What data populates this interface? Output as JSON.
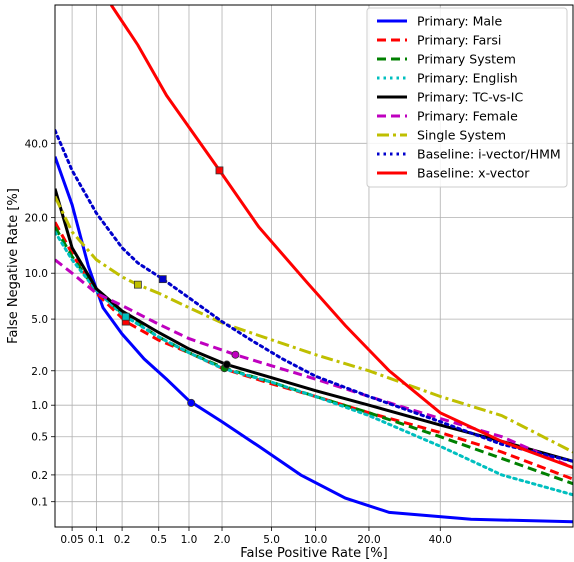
{
  "chart_data": {
    "type": "line",
    "title": "",
    "xlabel": "False Positive Rate [%]",
    "ylabel": "False Negative Rate [%]",
    "x_scale": "probit",
    "y_scale": "probit",
    "xlim": [
      0.03,
      80
    ],
    "ylim": [
      0.05,
      80
    ],
    "x_ticks": [
      0.05,
      0.1,
      0.2,
      0.5,
      1.0,
      2.0,
      5.0,
      10.0,
      20.0,
      40.0
    ],
    "x_tick_labels": [
      "0.05",
      "0.1",
      "0.2",
      "0.5",
      "1.0",
      "2.0",
      "5.0",
      "10.0",
      "20.0",
      "40.0"
    ],
    "y_ticks": [
      0.1,
      0.2,
      0.5,
      1.0,
      2.0,
      5.0,
      10.0,
      20.0,
      40.0
    ],
    "y_tick_labels": [
      "0.1",
      "0.2",
      "0.5",
      "1.0",
      "2.0",
      "5.0",
      "10.0",
      "20.0",
      "40.0"
    ],
    "grid": true,
    "legend_position": "top-right",
    "series": [
      {
        "name": "Primary: Male",
        "color": "#0000ff",
        "dash": "solid",
        "marker": "circle",
        "operating_point": [
          1.05,
          1.05
        ],
        "points": [
          [
            0.03,
            36
          ],
          [
            0.05,
            23
          ],
          [
            0.08,
            11
          ],
          [
            0.12,
            6
          ],
          [
            0.2,
            3.9
          ],
          [
            0.35,
            2.5
          ],
          [
            0.6,
            1.7
          ],
          [
            1.0,
            1.1
          ],
          [
            2.0,
            0.7
          ],
          [
            4.0,
            0.4
          ],
          [
            8.0,
            0.2
          ],
          [
            15.0,
            0.11
          ],
          [
            25.0,
            0.075
          ],
          [
            50.0,
            0.062
          ],
          [
            80.0,
            0.058
          ]
        ]
      },
      {
        "name": "Primary: Farsi",
        "color": "#ff0000",
        "dash": "dashed",
        "marker": "square",
        "operating_point": [
          0.22,
          4.8
        ],
        "points": [
          [
            0.03,
            19
          ],
          [
            0.05,
            13
          ],
          [
            0.1,
            7.5
          ],
          [
            0.22,
            4.8
          ],
          [
            0.5,
            3.5
          ],
          [
            1.0,
            2.8
          ],
          [
            2.0,
            2.1
          ],
          [
            5.0,
            1.55
          ],
          [
            10.0,
            1.2
          ],
          [
            20.0,
            0.85
          ],
          [
            40.0,
            0.55
          ],
          [
            60.0,
            0.35
          ],
          [
            80.0,
            0.18
          ]
        ]
      },
      {
        "name": "Primary System",
        "color": "#008000",
        "dash": "dashed",
        "marker": "circle",
        "operating_point": [
          2.1,
          2.1
        ],
        "points": [
          [
            0.03,
            18
          ],
          [
            0.05,
            12.5
          ],
          [
            0.1,
            7.8
          ],
          [
            0.2,
            5.5
          ],
          [
            0.5,
            3.7
          ],
          [
            1.0,
            2.8
          ],
          [
            2.1,
            2.1
          ],
          [
            5.0,
            1.6
          ],
          [
            10.0,
            1.2
          ],
          [
            20.0,
            0.85
          ],
          [
            40.0,
            0.5
          ],
          [
            60.0,
            0.3
          ],
          [
            80.0,
            0.16
          ]
        ]
      },
      {
        "name": "Primary: English",
        "color": "#00bfbf",
        "dash": "dotted",
        "marker": "square",
        "operating_point": [
          0.22,
          5.2
        ],
        "points": [
          [
            0.03,
            17
          ],
          [
            0.05,
            12
          ],
          [
            0.1,
            7.8
          ],
          [
            0.2,
            5.4
          ],
          [
            0.5,
            3.7
          ],
          [
            1.0,
            2.8
          ],
          [
            2.0,
            2.1
          ],
          [
            5.0,
            1.6
          ],
          [
            10.0,
            1.2
          ],
          [
            20.0,
            0.8
          ],
          [
            40.0,
            0.4
          ],
          [
            60.0,
            0.2
          ],
          [
            80.0,
            0.12
          ]
        ]
      },
      {
        "name": "Primary: TC-vs-IC",
        "color": "#000000",
        "dash": "solid",
        "marker": "circle",
        "operating_point": [
          2.2,
          2.25
        ],
        "points": [
          [
            0.03,
            27
          ],
          [
            0.05,
            14
          ],
          [
            0.1,
            8
          ],
          [
            0.2,
            5.7
          ],
          [
            0.5,
            4
          ],
          [
            1.0,
            3
          ],
          [
            2.2,
            2.25
          ],
          [
            5.0,
            1.75
          ],
          [
            10.0,
            1.35
          ],
          [
            20.0,
            1.0
          ],
          [
            40.0,
            0.65
          ],
          [
            60.0,
            0.45
          ],
          [
            80.0,
            0.28
          ]
        ]
      },
      {
        "name": "Primary: Female",
        "color": "#bf00bf",
        "dash": "dashed",
        "marker": "circle",
        "operating_point": [
          2.6,
          2.7
        ],
        "points": [
          [
            0.03,
            12
          ],
          [
            0.05,
            10
          ],
          [
            0.1,
            7.5
          ],
          [
            0.2,
            6.2
          ],
          [
            0.5,
            4.6
          ],
          [
            1.0,
            3.6
          ],
          [
            2.6,
            2.7
          ],
          [
            5.0,
            2.2
          ],
          [
            10.0,
            1.7
          ],
          [
            20.0,
            1.2
          ],
          [
            40.0,
            0.75
          ],
          [
            60.0,
            0.5
          ],
          [
            80.0,
            0.24
          ]
        ]
      },
      {
        "name": "Single System",
        "color": "#bfbf00",
        "dash": "dashdot",
        "marker": "square",
        "operating_point": [
          0.3,
          8.5
        ],
        "points": [
          [
            0.03,
            25
          ],
          [
            0.05,
            17
          ],
          [
            0.1,
            12
          ],
          [
            0.2,
            9.5
          ],
          [
            0.3,
            8.5
          ],
          [
            0.5,
            7.5
          ],
          [
            1.0,
            6
          ],
          [
            2.0,
            4.7
          ],
          [
            4.0,
            3.8
          ],
          [
            10.0,
            2.7
          ],
          [
            20.0,
            2.0
          ],
          [
            40.0,
            1.2
          ],
          [
            60.0,
            0.8
          ],
          [
            80.0,
            0.35
          ]
        ]
      },
      {
        "name": "Baseline: i-vector/HMM",
        "color": "#0000cc",
        "dash": "dotted",
        "marker": "square",
        "operating_point": [
          0.55,
          9.2
        ],
        "points": [
          [
            0.03,
            44
          ],
          [
            0.05,
            32
          ],
          [
            0.1,
            21
          ],
          [
            0.2,
            14
          ],
          [
            0.3,
            11.5
          ],
          [
            0.55,
            9.2
          ],
          [
            1.0,
            7
          ],
          [
            2.0,
            4.8
          ],
          [
            3.5,
            3.5
          ],
          [
            6.0,
            2.5
          ],
          [
            10.0,
            1.8
          ],
          [
            20.0,
            1.2
          ],
          [
            40.0,
            0.7
          ],
          [
            60.0,
            0.42
          ],
          [
            80.0,
            0.28
          ]
        ]
      },
      {
        "name": "Baseline: x-vector",
        "color": "#ff0000",
        "dash": "solid",
        "marker": "square",
        "operating_point": [
          1.9,
          32
        ],
        "points": [
          [
            0.15,
            80
          ],
          [
            0.3,
            70
          ],
          [
            0.6,
            55
          ],
          [
            1.0,
            45
          ],
          [
            1.9,
            32
          ],
          [
            4.0,
            18
          ],
          [
            8.8,
            8.8
          ],
          [
            15.0,
            4.5
          ],
          [
            25.0,
            2.0
          ],
          [
            40.0,
            0.85
          ],
          [
            60.0,
            0.45
          ],
          [
            80.0,
            0.24
          ]
        ]
      }
    ]
  }
}
